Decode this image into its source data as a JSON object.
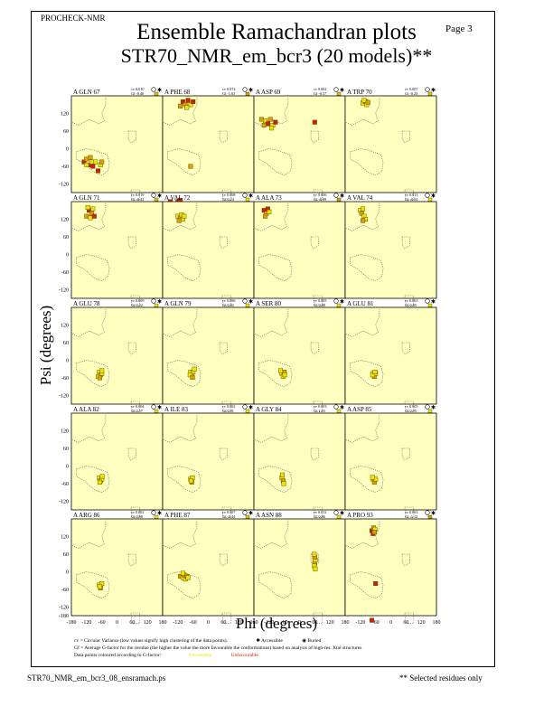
{
  "header": {
    "program": "PROCHECK-NMR",
    "page": "Page  3",
    "title": "Ensemble Ramachandran plots",
    "subtitle": "STR70_NMR_em_bcr3 (20 models)**"
  },
  "axes": {
    "xlabel": "Phi (degrees)",
    "ylabel": "Psi (degrees)",
    "xticks": [
      "-180",
      "-120",
      "-60",
      "0",
      "60",
      "120",
      "180"
    ],
    "yticks": [
      "120",
      "60",
      "0",
      "-60",
      "-120"
    ],
    "ybottom_tick": "-180"
  },
  "legend": {
    "cv_def": "cv = Circular Variance (low values signify high clustering of the data points).",
    "accessible": "Accessible",
    "buried": "Buried",
    "gf_def": "Gf = Average G-factor for the residue (the higher the value the more favourable the conformations) based on analysis of high-res. Xtal structures",
    "colour_note": "Data points coloured according to G-factor:",
    "favourable": "Favourable",
    "unfavourable": "Unfavourable"
  },
  "footer": {
    "filename": "STR70_NMR_em_bcr3_08_ensramach.ps",
    "note": "** Selected residues only"
  },
  "colors": {
    "panel_bg": "#ffffc0",
    "favourable": "#e6e600",
    "mid": "#d8a000",
    "unfavourable": "#cc2200",
    "region": "#555555"
  },
  "chart_data": {
    "type": "scatter",
    "xlabel": "Phi (degrees)",
    "ylabel": "Psi (degrees)",
    "xlim": [
      -180,
      180
    ],
    "ylim": [
      -180,
      180
    ],
    "panels": [
      {
        "residue": "A GLN 67",
        "cv": "cv 0.010",
        "gf": "Gf -0.46",
        "access": "buried",
        "gfcolor": "#e6c000",
        "points": [
          [
            -130,
            -45,
            "#cc2200"
          ],
          [
            -120,
            -35,
            "#d8a000"
          ],
          [
            -110,
            -55,
            "#cc2200"
          ],
          [
            -100,
            -45,
            "#e6e600"
          ],
          [
            -95,
            -60,
            "#cc2200"
          ],
          [
            -85,
            -45,
            "#e6e600"
          ],
          [
            -75,
            -75,
            "#cc2200"
          ],
          [
            -65,
            -55,
            "#e6e600"
          ],
          [
            -60,
            -45,
            "#d8a000"
          ],
          [
            -120,
            -55,
            "#e6e600"
          ],
          [
            -105,
            -30,
            "#d8a000"
          ]
        ]
      },
      {
        "residue": "A PHE 68",
        "cv": "cv 0.072",
        "gf": "Gf -1.03",
        "access": "buried",
        "gfcolor": "#d8a000",
        "points": [
          [
            -100,
            160,
            "#cc2200"
          ],
          [
            -90,
            150,
            "#d8a000"
          ],
          [
            -80,
            165,
            "#cc2200"
          ],
          [
            -70,
            150,
            "#e6e600"
          ],
          [
            -60,
            160,
            "#cc2200"
          ],
          [
            -110,
            145,
            "#d8a000"
          ],
          [
            -85,
            140,
            "#e6e600"
          ],
          [
            -70,
            -60,
            "#d8a000"
          ],
          [
            -150,
            -180,
            "#cc2200"
          ],
          [
            -120,
            -180,
            "#cc2200"
          ],
          [
            -110,
            -175,
            "#cc2200"
          ]
        ]
      },
      {
        "residue": "A ASP 69",
        "cv": "cv 0.062",
        "gf": "Gf -0.57",
        "access": "buried",
        "gfcolor": "#e6c000",
        "points": [
          [
            -150,
            100,
            "#d8a000"
          ],
          [
            -135,
            95,
            "#e6e600"
          ],
          [
            -125,
            85,
            "#cc2200"
          ],
          [
            -115,
            100,
            "#d8a000"
          ],
          [
            -105,
            80,
            "#e6e600"
          ],
          [
            -95,
            90,
            "#cc2200"
          ],
          [
            -140,
            80,
            "#d8a000"
          ],
          [
            -110,
            70,
            "#e6e600"
          ],
          [
            60,
            90,
            "#cc2200"
          ]
        ]
      },
      {
        "residue": "A TRP 70",
        "cv": "cv 0.007",
        "gf": "Gf -0.23",
        "access": "buried",
        "gfcolor": "#e6c000",
        "points": [
          [
            -110,
            155,
            "#e6e600"
          ],
          [
            -100,
            160,
            "#d8a000"
          ],
          [
            -95,
            150,
            "#e6e600"
          ],
          [
            -105,
            165,
            "#e6e600"
          ],
          [
            -90,
            158,
            "#d8a000"
          ]
        ]
      },
      {
        "residue": "A GLN 71",
        "cv": "cv 0.019",
        "gf": "Gf -0.42",
        "access": "buried",
        "gfcolor": "#e6c000",
        "points": [
          [
            -110,
            150,
            "#cc2200"
          ],
          [
            -100,
            140,
            "#d8a000"
          ],
          [
            -95,
            155,
            "#e6e600"
          ],
          [
            -120,
            130,
            "#d8a000"
          ],
          [
            -105,
            125,
            "#e6e600"
          ],
          [
            -90,
            130,
            "#cc2200"
          ],
          [
            -115,
            160,
            "#e6e600"
          ]
        ]
      },
      {
        "residue": "A VAL 72",
        "cv": "cv 0.008",
        "gf": "Gf 0.24",
        "access": "buried",
        "gfcolor": "#e6e600",
        "points": [
          [
            -120,
            130,
            "#e6e600"
          ],
          [
            -110,
            125,
            "#d8a000"
          ],
          [
            -105,
            135,
            "#e6e600"
          ],
          [
            -100,
            120,
            "#e6e600"
          ],
          [
            -115,
            115,
            "#d8a000"
          ],
          [
            -95,
            130,
            "#e6e600"
          ]
        ]
      },
      {
        "residue": "A ALA 73",
        "cv": "cv 0.006",
        "gf": "Gf -0.89",
        "access": "buried",
        "gfcolor": "#d8a000",
        "points": [
          [
            -140,
            150,
            "#cc2200"
          ],
          [
            -130,
            140,
            "#d8a000"
          ],
          [
            -125,
            155,
            "#cc2200"
          ],
          [
            -120,
            145,
            "#e6e600"
          ],
          [
            -135,
            130,
            "#d8a000"
          ]
        ]
      },
      {
        "residue": "A VAL 74",
        "cv": "cv 0.013",
        "gf": "Gf -0.04",
        "access": "buried",
        "gfcolor": "#e6e600",
        "points": [
          [
            -120,
            150,
            "#e6e600"
          ],
          [
            -115,
            140,
            "#d8a000"
          ],
          [
            -110,
            155,
            "#e6e600"
          ],
          [
            -105,
            130,
            "#e6e600"
          ],
          [
            -100,
            120,
            "#e6e600"
          ],
          [
            -110,
            115,
            "#d8a000"
          ]
        ]
      },
      {
        "residue": "A GLU 78",
        "cv": "cv 0.009",
        "gf": "Gf 0.22",
        "access": "accessible",
        "gfcolor": "#e6e600",
        "points": [
          [
            -70,
            -40,
            "#e6e600"
          ],
          [
            -65,
            -50,
            "#d8a000"
          ],
          [
            -60,
            -45,
            "#e6e600"
          ],
          [
            -75,
            -55,
            "#e6e600"
          ],
          [
            -60,
            -35,
            "#e6e600"
          ],
          [
            -68,
            -60,
            "#d8a000"
          ]
        ]
      },
      {
        "residue": "A GLN 79",
        "cv": "cv 0.006",
        "gf": "Gf 0.82",
        "access": "buried",
        "gfcolor": "#e6e600",
        "points": [
          [
            -70,
            -40,
            "#e6e600"
          ],
          [
            -65,
            -50,
            "#d8a000"
          ],
          [
            -60,
            -40,
            "#e6e600"
          ],
          [
            -55,
            -30,
            "#e6e600"
          ],
          [
            -72,
            -50,
            "#e6e600"
          ],
          [
            -62,
            -58,
            "#d8a000"
          ]
        ]
      },
      {
        "residue": "A SER 80",
        "cv": "cv 0.005",
        "gf": "Gf 0.88",
        "access": "buried",
        "gfcolor": "#e6e600",
        "points": [
          [
            -70,
            -45,
            "#e6e600"
          ],
          [
            -65,
            -55,
            "#e6e600"
          ],
          [
            -60,
            -40,
            "#d8a000"
          ],
          [
            -75,
            -35,
            "#e6e600"
          ],
          [
            -58,
            -50,
            "#e6e600"
          ]
        ]
      },
      {
        "residue": "A GLU 81",
        "cv": "cv 0.003",
        "gf": "Gf 0.85",
        "access": "accessible",
        "gfcolor": "#e6e600",
        "points": [
          [
            -70,
            -45,
            "#e6e600"
          ],
          [
            -65,
            -55,
            "#d8a000"
          ],
          [
            -60,
            -45,
            "#e6e600"
          ],
          [
            -72,
            -50,
            "#e6e600"
          ],
          [
            -62,
            -40,
            "#e6e600"
          ]
        ]
      },
      {
        "residue": "A ALA 82",
        "cv": "cv 0.004",
        "gf": "Gf 0.57",
        "access": "accessible",
        "gfcolor": "#e6e600",
        "points": [
          [
            -70,
            -40,
            "#e6e600"
          ],
          [
            -65,
            -50,
            "#d8a000"
          ],
          [
            -60,
            -45,
            "#e6e600"
          ],
          [
            -68,
            -55,
            "#e6e600"
          ],
          [
            -58,
            -35,
            "#e6e600"
          ]
        ]
      },
      {
        "residue": "A ILE 83",
        "cv": "cv 0.002",
        "gf": "Gf 0.91",
        "access": "buried",
        "gfcolor": "#e6e600",
        "points": [
          [
            -70,
            -45,
            "#e6e600"
          ],
          [
            -65,
            -55,
            "#d8a000"
          ],
          [
            -62,
            -40,
            "#e6e600"
          ],
          [
            -68,
            -50,
            "#e6e600"
          ]
        ]
      },
      {
        "residue": "A GLY 84",
        "cv": "cv 0.003",
        "gf": "Gf 1.03",
        "access": "buried",
        "gfcolor": "#e6e600",
        "points": [
          [
            -70,
            -40,
            "#e6e600"
          ],
          [
            -65,
            -50,
            "#d8a000"
          ],
          [
            -62,
            -60,
            "#e6e600"
          ],
          [
            -68,
            -30,
            "#e6e600"
          ]
        ]
      },
      {
        "residue": "A ASP 85",
        "cv": "cv 0.005",
        "gf": "Gf 0.95",
        "access": "buried",
        "gfcolor": "#e6e600",
        "points": [
          [
            -70,
            -45,
            "#e6e600"
          ],
          [
            -65,
            -55,
            "#d8a000"
          ],
          [
            -60,
            -45,
            "#e6e600"
          ],
          [
            -72,
            -38,
            "#e6e600"
          ]
        ]
      },
      {
        "residue": "A ARG 86",
        "cv": "cv 0.002",
        "gf": "Gf 0.98",
        "access": "accessible",
        "gfcolor": "#e6e600",
        "points": [
          [
            -70,
            -45,
            "#e6e600"
          ],
          [
            -65,
            -55,
            "#d8a000"
          ],
          [
            -60,
            -40,
            "#e6e600"
          ],
          [
            -68,
            -50,
            "#e6e600"
          ]
        ]
      },
      {
        "residue": "A PHE 87",
        "cv": "cv 0.007",
        "gf": "Gf -0.44",
        "access": "accessible",
        "gfcolor": "#e6c000",
        "points": [
          [
            -110,
            -15,
            "#d8a000"
          ],
          [
            -100,
            -20,
            "#e6e600"
          ],
          [
            -95,
            -10,
            "#d8a000"
          ],
          [
            -90,
            -25,
            "#e6e600"
          ],
          [
            -85,
            -15,
            "#d8a000"
          ],
          [
            -80,
            -20,
            "#e6e600"
          ],
          [
            -100,
            -5,
            "#e6e600"
          ]
        ]
      },
      {
        "residue": "A ASN 88",
        "cv": "cv 0.012",
        "gf": "Gf 0.06",
        "access": "accessible",
        "gfcolor": "#e6e600",
        "points": [
          [
            60,
            30,
            "#d8a000"
          ],
          [
            62,
            40,
            "#e6e600"
          ],
          [
            58,
            20,
            "#e6e600"
          ],
          [
            60,
            50,
            "#d8a000"
          ],
          [
            62,
            10,
            "#e6e600"
          ],
          [
            58,
            60,
            "#e6e600"
          ]
        ]
      },
      {
        "residue": "A PRO 93",
        "cv": "cv 0.063",
        "gf": "Gf -1.12",
        "access": "buried",
        "gfcolor": "#d8a000",
        "points": [
          [
            -75,
            140,
            "#cc2200"
          ],
          [
            -68,
            150,
            "#d8a000"
          ],
          [
            -62,
            145,
            "#e6e600"
          ],
          [
            -70,
            130,
            "#cc2200"
          ],
          [
            -65,
            135,
            "#d8a000"
          ],
          [
            -60,
            -40,
            "#cc2200"
          ],
          [
            -75,
            -165,
            "#cc2200"
          ]
        ]
      }
    ]
  }
}
